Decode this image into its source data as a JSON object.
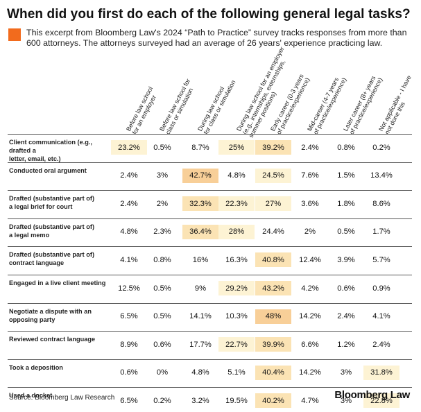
{
  "title": "When did you first do each of the following general legal tasks?",
  "subtitle": "This excerpt from Bloomberg Law's 2024 “Path to Practice” survey tracks responses from more than 600 attorneys. The attorneys surveyed had an average of 26 years' experience practicing law.",
  "source": "Source: Bloomberg Law Research",
  "logo": "Bloomberg Law",
  "colors": {
    "accent": "#f26b1d",
    "shade_light": "#fdf3d4",
    "shade_mid": "#fbe3b4",
    "shade_dark": "#f8cf98"
  },
  "chart_data": {
    "type": "table",
    "columns": [
      [
        "Before law school",
        "for an employer"
      ],
      [
        "Before law school for",
        "class or simulation"
      ],
      [
        "During law school",
        "for class or simulation"
      ],
      [
        "During law school for an employer",
        "(e.g., internships, externships,",
        "summer positions)"
      ],
      [
        "Early career (0-3 years",
        "of practice/experience)"
      ],
      [
        "Mid-career (4-7 years",
        "of practice/experience)"
      ],
      [
        "Later career (8+ years",
        "of practice/experience)"
      ],
      [
        "Not applicable - I have",
        "not done this"
      ]
    ],
    "rows": [
      {
        "label": [
          "Client communication (e.g., drafted a",
          "letter, email, etc.)"
        ],
        "values": [
          "23.2%",
          "0.5%",
          "8.7%",
          "25%",
          "39.2%",
          "2.4%",
          "0.8%",
          "0.2%"
        ],
        "shade": [
          1,
          0,
          0,
          1,
          2,
          0,
          0,
          0
        ]
      },
      {
        "label": [
          "Conducted oral argument"
        ],
        "values": [
          "2.4%",
          "3%",
          "42.7%",
          "4.8%",
          "24.5%",
          "7.6%",
          "1.5%",
          "13.4%"
        ],
        "shade": [
          0,
          0,
          3,
          0,
          1,
          0,
          0,
          0
        ]
      },
      {
        "label": [
          "Drafted (substantive part of)",
          "a legal brief for court"
        ],
        "values": [
          "2.4%",
          "2%",
          "32.3%",
          "22.3%",
          "27%",
          "3.6%",
          "1.8%",
          "8.6%"
        ],
        "shade": [
          0,
          0,
          2,
          1,
          1,
          0,
          0,
          0
        ]
      },
      {
        "label": [
          "Drafted (substantive part of)",
          "a legal memo"
        ],
        "values": [
          "4.8%",
          "2.3%",
          "36.4%",
          "28%",
          "24.4%",
          "2%",
          "0.5%",
          "1.7%"
        ],
        "shade": [
          0,
          0,
          2,
          1,
          0,
          0,
          0,
          0
        ]
      },
      {
        "label": [
          "Drafted (substantive part of)",
          "contract language"
        ],
        "values": [
          "4.1%",
          "0.8%",
          "16%",
          "16.3%",
          "40.8%",
          "12.4%",
          "3.9%",
          "5.7%"
        ],
        "shade": [
          0,
          0,
          0,
          0,
          2,
          0,
          0,
          0
        ]
      },
      {
        "label": [
          "Engaged in a live client meeting"
        ],
        "values": [
          "12.5%",
          "0.5%",
          "9%",
          "29.2%",
          "43.2%",
          "4.2%",
          "0.6%",
          "0.9%"
        ],
        "shade": [
          0,
          0,
          0,
          1,
          2,
          0,
          0,
          0
        ]
      },
      {
        "label": [
          "Negotiate a dispute with an",
          "opposing party"
        ],
        "values": [
          "6.5%",
          "0.5%",
          "14.1%",
          "10.3%",
          "48%",
          "14.2%",
          "2.4%",
          "4.1%"
        ],
        "shade": [
          0,
          0,
          0,
          0,
          3,
          0,
          0,
          0
        ]
      },
      {
        "label": [
          "Reviewed contract language"
        ],
        "values": [
          "8.9%",
          "0.6%",
          "17.7%",
          "22.7%",
          "39.9%",
          "6.6%",
          "1.2%",
          "2.4%"
        ],
        "shade": [
          0,
          0,
          0,
          1,
          2,
          0,
          0,
          0
        ]
      },
      {
        "label": [
          "Took a deposition"
        ],
        "values": [
          "0.6%",
          "0%",
          "4.8%",
          "5.1%",
          "40.4%",
          "14.2%",
          "3%",
          "31.8%"
        ],
        "shade": [
          0,
          0,
          0,
          0,
          2,
          0,
          0,
          1
        ]
      },
      {
        "label": [
          "Used a docket"
        ],
        "values": [
          "6.5%",
          "0.2%",
          "3.2%",
          "19.5%",
          "40.2%",
          "4.7%",
          "3%",
          "22.8%"
        ],
        "shade": [
          0,
          0,
          0,
          0,
          2,
          0,
          0,
          1
        ]
      }
    ]
  }
}
